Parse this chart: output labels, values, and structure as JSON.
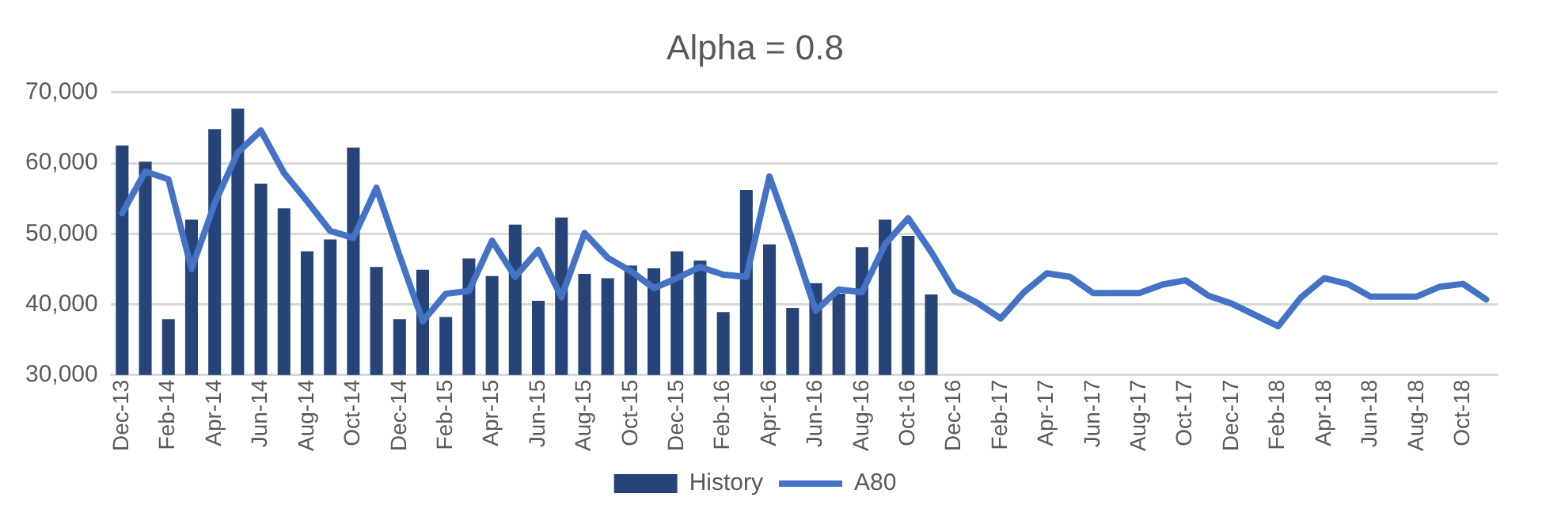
{
  "chart_data": {
    "type": "bar",
    "title": "Alpha = 0.8",
    "categories": [
      "Dec-13",
      null,
      "Feb-14",
      null,
      "Apr-14",
      null,
      "Jun-14",
      null,
      "Aug-14",
      null,
      "Oct-14",
      null,
      "Dec-14",
      null,
      "Feb-15",
      null,
      "Apr-15",
      null,
      "Jun-15",
      null,
      "Aug-15",
      null,
      "Oct-15",
      null,
      "Dec-15",
      null,
      "Feb-16",
      null,
      "Apr-16",
      null,
      "Jun-16",
      null,
      "Aug-16",
      null,
      "Oct-16",
      null,
      "Dec-16",
      null,
      "Feb-17",
      null,
      "Apr-17",
      null,
      "Jun-17",
      null,
      "Aug-17",
      null,
      "Oct-17",
      null,
      "Dec-17",
      null,
      "Feb-18",
      null,
      "Apr-18",
      null,
      "Jun-18",
      null,
      "Aug-18",
      null,
      "Oct-18",
      null
    ],
    "series": [
      {
        "name": "History",
        "color": "#264478",
        "values": [
          62500,
          60200,
          37900,
          52000,
          64800,
          67700,
          57100,
          53600,
          47500,
          49200,
          62200,
          45300,
          37900,
          44900,
          38200,
          46500,
          44000,
          51300,
          40500,
          52300,
          44300,
          43700,
          45500,
          45100,
          47500,
          46200,
          38900,
          56200,
          48500,
          39500,
          43000,
          41500,
          48100,
          52000,
          49700,
          41400,
          null,
          null,
          null,
          null,
          null,
          null,
          null,
          null,
          null,
          null,
          null,
          null,
          null,
          null,
          null,
          null,
          null,
          null,
          null,
          null,
          null,
          null,
          null,
          null
        ]
      },
      {
        "name": "A80",
        "type": "line",
        "color": "#4472c4",
        "values": [
          52900,
          58800,
          57700,
          45000,
          54300,
          61500,
          64600,
          58600,
          54600,
          50400,
          49400,
          56500,
          46900,
          37600,
          41500,
          41900,
          49000,
          43900,
          47700,
          41000,
          50100,
          46600,
          44700,
          42300,
          43700,
          45300,
          44200,
          43900,
          58100,
          49000,
          39100,
          42100,
          41700,
          48500,
          52200,
          47400,
          41900,
          40200,
          38000,
          41700,
          44400,
          43900,
          41600,
          41600,
          41600,
          42800,
          43400,
          41200,
          40100,
          38500,
          36900,
          41000,
          43700,
          42900,
          41100,
          41100,
          41100,
          42500,
          42900,
          40700
        ]
      }
    ],
    "ylim": [
      30000,
      70000
    ],
    "yticks": [
      {
        "value": 30000,
        "label": "30,000"
      },
      {
        "value": 40000,
        "label": "40,000"
      },
      {
        "value": 50000,
        "label": "50,000"
      },
      {
        "value": 60000,
        "label": "60,000"
      },
      {
        "value": 70000,
        "label": "70,000"
      }
    ],
    "grid": "y",
    "legend": "bottom",
    "marker": "none",
    "line_style": "solid"
  }
}
